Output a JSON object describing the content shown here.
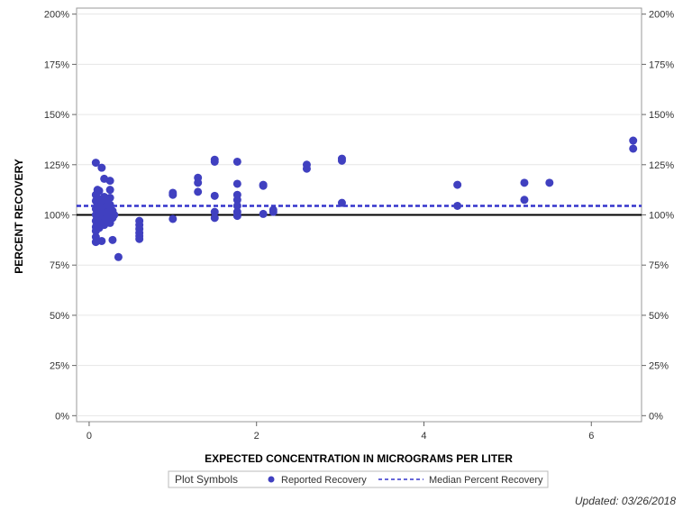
{
  "chart_data": {
    "type": "scatter",
    "xlabel": "EXPECTED CONCENTRATION IN MICROGRAMS PER LITER",
    "ylabel": "PERCENT RECOVERY",
    "xlim": [
      -0.15,
      6.6
    ],
    "ylim": [
      -3,
      203
    ],
    "x_ticks": [
      0,
      2,
      4,
      6
    ],
    "x_tick_labels": [
      "0",
      "2",
      "4",
      "6"
    ],
    "y_ticks": [
      0,
      25,
      50,
      75,
      100,
      125,
      150,
      175,
      200
    ],
    "y_tick_labels": [
      "0%",
      "25%",
      "50%",
      "75%",
      "100%",
      "125%",
      "150%",
      "175%",
      "200%"
    ],
    "grid": "horizontal",
    "reference_line": 100,
    "median_percent_recovery": 104.5,
    "series": [
      {
        "name": "Reported Recovery",
        "color": "#4040c0",
        "points": [
          [
            0.08,
            126
          ],
          [
            0.08,
            110
          ],
          [
            0.08,
            107
          ],
          [
            0.08,
            103
          ],
          [
            0.08,
            100
          ],
          [
            0.08,
            97
          ],
          [
            0.08,
            94
          ],
          [
            0.08,
            92
          ],
          [
            0.08,
            89
          ],
          [
            0.08,
            86.5
          ],
          [
            0.1,
            112.5
          ],
          [
            0.1,
            105
          ],
          [
            0.1,
            102
          ],
          [
            0.1,
            99
          ],
          [
            0.12,
            112
          ],
          [
            0.12,
            108
          ],
          [
            0.12,
            104
          ],
          [
            0.12,
            101
          ],
          [
            0.12,
            96
          ],
          [
            0.12,
            93.5
          ],
          [
            0.15,
            123.5
          ],
          [
            0.15,
            106
          ],
          [
            0.15,
            100
          ],
          [
            0.15,
            97.5
          ],
          [
            0.15,
            87
          ],
          [
            0.18,
            118
          ],
          [
            0.18,
            109
          ],
          [
            0.18,
            105
          ],
          [
            0.18,
            102
          ],
          [
            0.18,
            99
          ],
          [
            0.18,
            95
          ],
          [
            0.2,
            107
          ],
          [
            0.2,
            104
          ],
          [
            0.2,
            101
          ],
          [
            0.2,
            98
          ],
          [
            0.22,
            105
          ],
          [
            0.22,
            100
          ],
          [
            0.22,
            97
          ],
          [
            0.25,
            117
          ],
          [
            0.25,
            112.5
          ],
          [
            0.25,
            108.5
          ],
          [
            0.25,
            105
          ],
          [
            0.25,
            101
          ],
          [
            0.25,
            96
          ],
          [
            0.28,
            102
          ],
          [
            0.28,
            98.5
          ],
          [
            0.28,
            87.5
          ],
          [
            0.3,
            100
          ],
          [
            0.35,
            79
          ],
          [
            0.6,
            97
          ],
          [
            0.6,
            95
          ],
          [
            0.6,
            93
          ],
          [
            0.6,
            91
          ],
          [
            0.6,
            89.5
          ],
          [
            0.6,
            88
          ],
          [
            1.0,
            111
          ],
          [
            1.0,
            110
          ],
          [
            1.0,
            98
          ],
          [
            1.3,
            118.5
          ],
          [
            1.3,
            116
          ],
          [
            1.3,
            111.5
          ],
          [
            1.5,
            127.5
          ],
          [
            1.5,
            126.5
          ],
          [
            1.5,
            109.5
          ],
          [
            1.5,
            101.5
          ],
          [
            1.5,
            98.5
          ],
          [
            1.77,
            126.5
          ],
          [
            1.77,
            115.5
          ],
          [
            1.77,
            110
          ],
          [
            1.77,
            107.5
          ],
          [
            1.77,
            104.5
          ],
          [
            1.77,
            101.5
          ],
          [
            1.77,
            99.5
          ],
          [
            2.08,
            115
          ],
          [
            2.08,
            114.5
          ],
          [
            2.08,
            100.5
          ],
          [
            2.2,
            102.5
          ],
          [
            2.2,
            101.5
          ],
          [
            2.6,
            125
          ],
          [
            2.6,
            123
          ],
          [
            3.02,
            128
          ],
          [
            3.02,
            127
          ],
          [
            3.02,
            106
          ],
          [
            4.4,
            115
          ],
          [
            4.4,
            104.5
          ],
          [
            5.2,
            116
          ],
          [
            5.2,
            107.5
          ],
          [
            5.5,
            116
          ],
          [
            6.5,
            137
          ],
          [
            6.5,
            133
          ]
        ]
      }
    ],
    "legend": {
      "title": "Plot Symbols",
      "placement": "bottom-center",
      "entries": [
        "Reported Recovery",
        "Median Percent Recovery"
      ]
    }
  },
  "footer": {
    "updated": "Updated: 03/26/2018"
  },
  "colors": {
    "point": "#4040c0",
    "median_line": "#3333cc",
    "reference_line": "#000000",
    "grid": "#e6e6e6",
    "frame": "#999999"
  }
}
